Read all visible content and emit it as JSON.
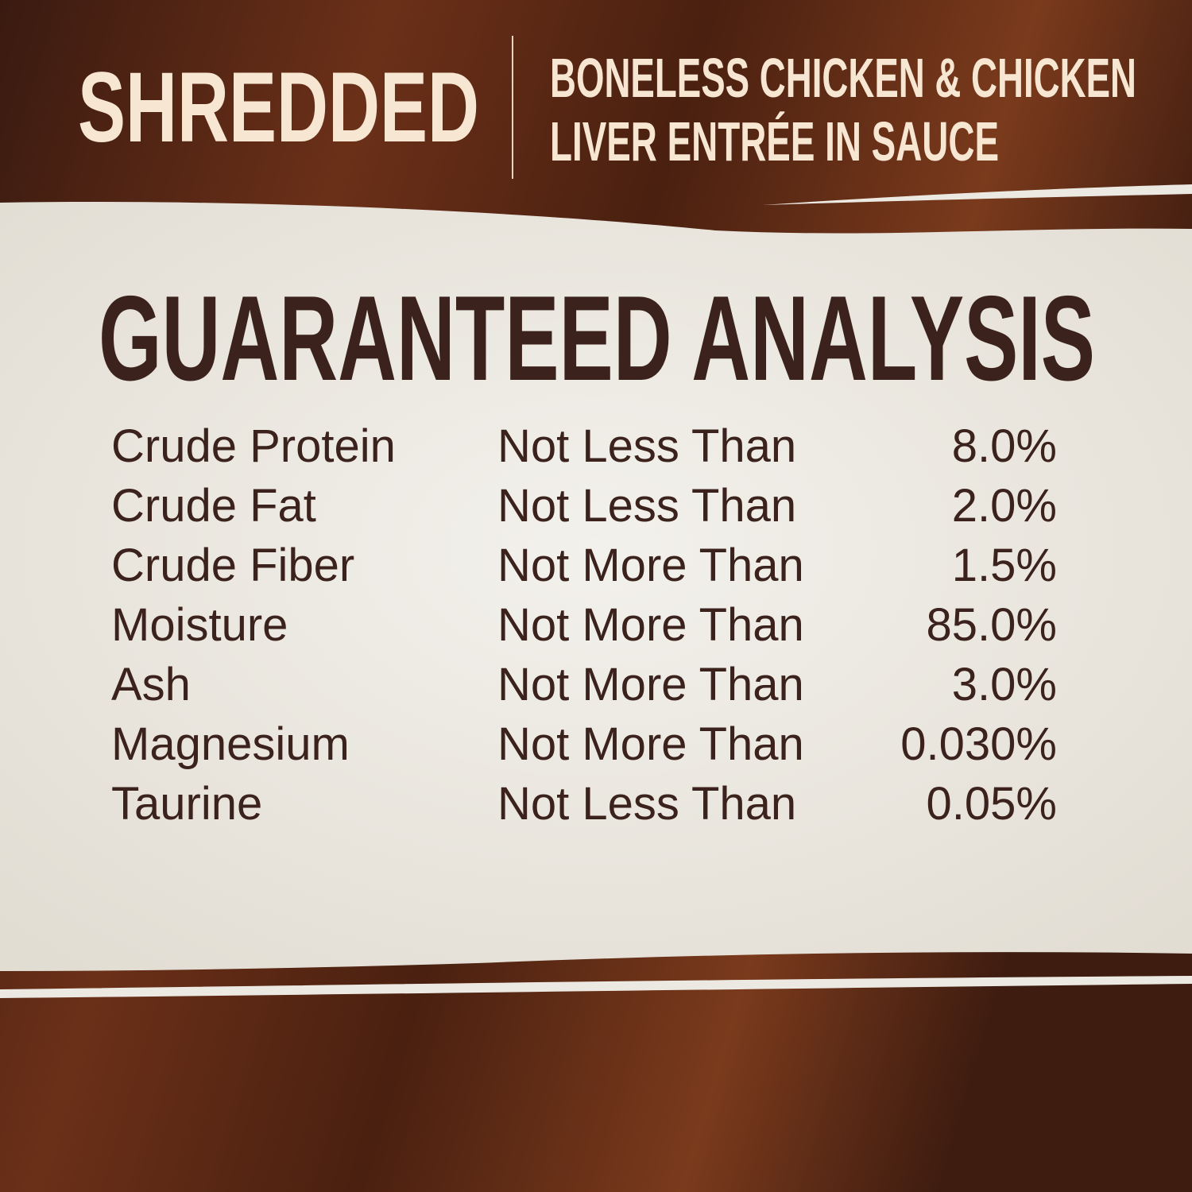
{
  "header": {
    "style": "SHREDDED",
    "description_line1": "BONELESS CHICKEN & CHICKEN",
    "description_line2": "LIVER ENTRÉE IN SAUCE"
  },
  "title": "GUARANTEED ANALYSIS",
  "analysis": [
    {
      "nutrient": "Crude Protein",
      "qualifier": "Not Less Than",
      "value": "8.0%"
    },
    {
      "nutrient": "Crude Fat",
      "qualifier": "Not Less Than",
      "value": "2.0%"
    },
    {
      "nutrient": "Crude Fiber",
      "qualifier": "Not More Than",
      "value": "1.5%"
    },
    {
      "nutrient": "Moisture",
      "qualifier": "Not More Than",
      "value": "85.0%"
    },
    {
      "nutrient": "Ash",
      "qualifier": "Not More Than",
      "value": "3.0%"
    },
    {
      "nutrient": "Magnesium",
      "qualifier": "Not More Than",
      "value": "0.030%"
    },
    {
      "nutrient": "Taurine",
      "qualifier": "Not Less Than",
      "value": "0.05%"
    }
  ],
  "colors": {
    "wood": "#5a2a18",
    "paper": "#ece9e2",
    "text_dark": "#3b221c",
    "text_light": "#f7e6d2"
  }
}
